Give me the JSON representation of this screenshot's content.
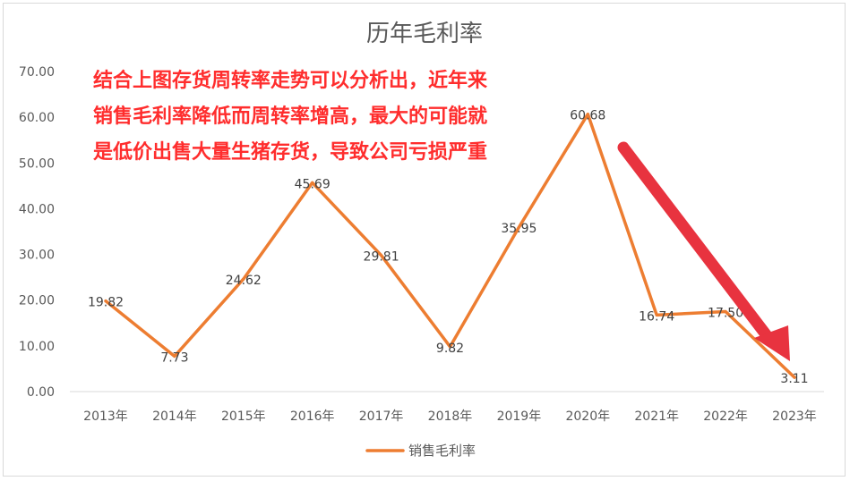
{
  "chart_data": {
    "type": "line",
    "title": "历年毛利率",
    "categories": [
      "2013年",
      "2014年",
      "2015年",
      "2016年",
      "2017年",
      "2018年",
      "2019年",
      "2020年",
      "2021年",
      "2022年",
      "2023年"
    ],
    "series": [
      {
        "name": "销售毛利率",
        "values": [
          19.82,
          7.73,
          24.62,
          45.69,
          29.81,
          9.82,
          35.95,
          60.68,
          16.74,
          17.5,
          3.11
        ],
        "color": "#ed7d31"
      }
    ],
    "data_labels": [
      "19.82",
      "7.73",
      "24.62",
      "45.69",
      "29.81",
      "9.82",
      "35.95",
      "60.68",
      "16.74",
      "17.50",
      "3.11"
    ],
    "ylim": [
      0,
      70
    ],
    "y_ticks": [
      "0.00",
      "10.00",
      "20.00",
      "30.00",
      "40.00",
      "50.00",
      "60.00",
      "70.00"
    ],
    "grid": false,
    "legend_position": "bottom",
    "annotation": {
      "lines": [
        "结合上图存货周转率走势可以分析出，近年来",
        "销售毛利率降低而周转率增高，最大的可能就",
        "是低价出售大量生猪存货，导致公司亏损严重"
      ],
      "color": "#ff2d2d"
    },
    "arrow_color": "#e8333f"
  }
}
